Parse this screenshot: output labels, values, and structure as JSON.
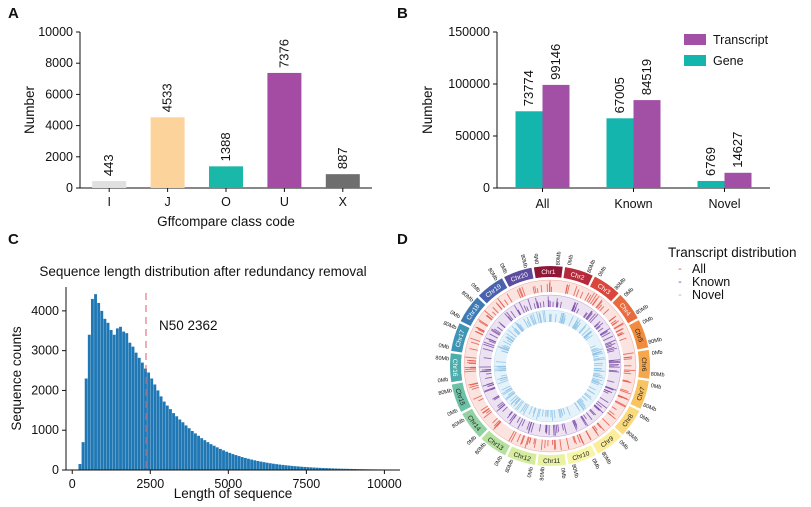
{
  "panels": {
    "A": "A",
    "B": "B",
    "C": "C",
    "D": "D"
  },
  "chart_data": [
    {
      "id": "A",
      "type": "bar",
      "title": "",
      "xlabel": "Gffcompare class code",
      "ylabel": "Number",
      "categories": [
        "I",
        "J",
        "O",
        "U",
        "X"
      ],
      "values": [
        443,
        4533,
        1388,
        7376,
        887
      ],
      "value_labels": [
        "443",
        "4533",
        "1388",
        "7376",
        "887"
      ],
      "colors": [
        "#e0e0e0",
        "#fdd39c",
        "#1ab8a8",
        "#a44ca4",
        "#6e6e6e"
      ],
      "ylim": [
        0,
        10000
      ],
      "yticks": [
        0,
        2000,
        4000,
        6000,
        8000,
        10000
      ],
      "ytick_labels": [
        "0",
        "2000",
        "4000",
        "6000",
        "8000",
        "10000"
      ]
    },
    {
      "id": "B",
      "type": "bar",
      "title": "",
      "xlabel": "",
      "ylabel": "Number",
      "categories": [
        "All",
        "Known",
        "Novel"
      ],
      "series": [
        {
          "name": "Gene",
          "color": "#14b5ad",
          "values": [
            73774,
            67005,
            6769
          ],
          "value_labels": [
            "73774",
            "67005",
            "6769"
          ]
        },
        {
          "name": "Transcript",
          "color": "#a24fa6",
          "values": [
            99146,
            84519,
            14627
          ],
          "value_labels": [
            "99146",
            "84519",
            "14627"
          ]
        }
      ],
      "legend_order": [
        "Transcript",
        "Gene"
      ],
      "legend_position": "top-right",
      "ylim": [
        0,
        150000
      ],
      "yticks": [
        0,
        50000,
        100000,
        150000
      ],
      "ytick_labels": [
        "0",
        "50000",
        "100000",
        "150000"
      ]
    },
    {
      "id": "C",
      "type": "bar",
      "title": "Sequence length distribution after redundancy removal",
      "xlabel": "Length of sequence",
      "ylabel": "Sequence counts",
      "color": "#1f77b4",
      "bin_width": 100,
      "bin_start": 200,
      "counts": [
        150,
        700,
        2300,
        3400,
        4300,
        4420,
        4200,
        4000,
        3800,
        3700,
        3520,
        3400,
        3560,
        3600,
        3480,
        3440,
        3200,
        3100,
        2950,
        2820,
        2700,
        2550,
        2450,
        2300,
        2150,
        2000,
        1850,
        1720,
        1620,
        1530,
        1430,
        1350,
        1270,
        1200,
        1120,
        1050,
        980,
        920,
        860,
        800,
        750,
        700,
        650,
        610,
        570,
        530,
        495,
        460,
        430,
        400,
        375,
        350,
        325,
        303,
        282,
        262,
        244,
        227,
        211,
        197,
        183,
        170,
        158,
        147,
        137,
        128,
        119,
        111,
        103,
        96,
        89,
        83,
        77,
        72,
        67,
        62,
        58,
        54,
        50,
        47,
        44,
        41,
        38,
        35,
        33,
        31,
        29,
        27,
        25,
        23,
        21,
        20,
        18,
        17,
        16,
        15,
        14,
        13
      ],
      "xlim": [
        -200,
        10500
      ],
      "ylim": [
        0,
        4600
      ],
      "xticks": [
        0,
        2500,
        5000,
        7500,
        10000
      ],
      "xtick_labels": [
        "0",
        "2500",
        "5000",
        "7500",
        "10000"
      ],
      "yticks": [
        0,
        1000,
        2000,
        3000,
        4000
      ],
      "ytick_labels": [
        "0",
        "1000",
        "2000",
        "3000",
        "4000"
      ],
      "n50": 2362,
      "n50_label": "N50 2362"
    },
    {
      "id": "D",
      "type": "circos",
      "title": "Transcript distribution",
      "legend": [
        {
          "name": "All",
          "color": "#e5584a"
        },
        {
          "name": "Known",
          "color": "#7b4fa8"
        },
        {
          "name": "Novel",
          "color": "#8cc3e6"
        }
      ],
      "chromosomes": [
        {
          "name": "Chr1",
          "color": "#8e1737",
          "start": "0Mb",
          "end": "80Mb"
        },
        {
          "name": "Chr2",
          "color": "#b52b3c",
          "start": "0Mb",
          "end": "80Mb"
        },
        {
          "name": "Chr3",
          "color": "#d8463c",
          "start": "0Mb",
          "end": "80Mb"
        },
        {
          "name": "Chr4",
          "color": "#e96a3c",
          "start": "0Mb",
          "end": "80Mb"
        },
        {
          "name": "Chr5",
          "color": "#f08c3e",
          "start": "0Mb",
          "end": "80Mb"
        },
        {
          "name": "Chr6",
          "color": "#f5a74a",
          "start": "0Mb",
          "end": "80Mb"
        },
        {
          "name": "Chr7",
          "color": "#f8c361",
          "start": "0Mb",
          "end": "80Mb"
        },
        {
          "name": "Chr8",
          "color": "#fbda7c",
          "start": "0Mb",
          "end": "80Mb"
        },
        {
          "name": "Chr9",
          "color": "#fced99",
          "start": "0Mb",
          "end": "80Mb"
        },
        {
          "name": "Chr10",
          "color": "#f6f5a8",
          "start": "0Mb",
          "end": "80Mb"
        },
        {
          "name": "Chr11",
          "color": "#e9f2a2",
          "start": "0Mb",
          "end": "80Mb"
        },
        {
          "name": "Chr12",
          "color": "#d3ec9e",
          "start": "0Mb",
          "end": "80Mb"
        },
        {
          "name": "Chr13",
          "color": "#b5e09e",
          "start": "0Mb",
          "end": "80Mb"
        },
        {
          "name": "Chr14",
          "color": "#92d2a2",
          "start": "0Mb",
          "end": "80Mb"
        },
        {
          "name": "Chr15",
          "color": "#6dc1a5",
          "start": "0Mb",
          "end": "80Mb"
        },
        {
          "name": "Chr16",
          "color": "#4eacab",
          "start": "0Mb",
          "end": "80Mb"
        },
        {
          "name": "Chr17",
          "color": "#3d94b4",
          "start": "0Mb",
          "end": "80Mb"
        },
        {
          "name": "Chr18",
          "color": "#3d7bb5",
          "start": "0Mb",
          "end": "80Mb"
        },
        {
          "name": "Chr19",
          "color": "#4a62ad",
          "start": "0Mb",
          "end": "80Mb"
        },
        {
          "name": "Chr20",
          "color": "#5c4b9e",
          "start": "0Mb",
          "end": "80Mb"
        }
      ]
    }
  ]
}
